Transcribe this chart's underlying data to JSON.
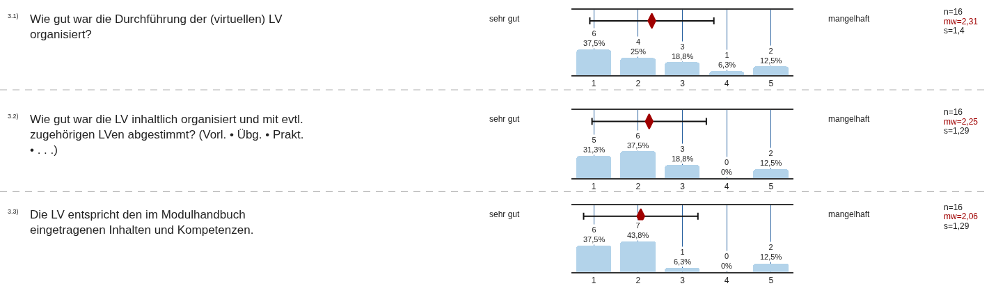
{
  "chart_data": [
    {
      "type": "bar",
      "x": [
        1,
        2,
        3,
        4,
        5
      ],
      "xlim": [
        0.5,
        5.5
      ],
      "xticks": [
        1,
        2,
        3,
        4,
        5
      ],
      "grid": "x",
      "tick_labels": "x",
      "series": [
        {
          "color": "#b3d3ea",
          "values": [
            6,
            4,
            3,
            1,
            2
          ],
          "value_labels": [
            "6\n37,5%",
            "4\n25%",
            "3\n18,8%",
            "1\n6,3%",
            "2\n12,5%"
          ]
        },
        {
          "type": "scatter",
          "color": "#a00000",
          "x": [
            2.31
          ],
          "values": [
            12.7
          ],
          "xerrors": [
            1.4
          ]
        }
      ],
      "annotations": [
        "3.1)",
        "Wie gut war die Durchführung der (virtuellen) LV\norganisiert?",
        "sehr gut",
        "mangelhaft",
        "n=16",
        "mw=2,31",
        "s=1,4"
      ]
    },
    {
      "type": "bar",
      "x": [
        1,
        2,
        3,
        4,
        5
      ],
      "xlim": [
        0.5,
        5.5
      ],
      "xticks": [
        1,
        2,
        3,
        4,
        5
      ],
      "grid": "x",
      "tick_labels": "x",
      "series": [
        {
          "color": "#b3d3ea",
          "values": [
            5,
            6,
            3,
            0,
            2
          ],
          "value_labels": [
            "5\n31,3%",
            "6\n37,5%",
            "3\n18,8%",
            "0\n0%",
            "2\n12,5%"
          ]
        },
        {
          "type": "scatter",
          "color": "#a00000",
          "x": [
            2.25
          ],
          "values": [
            12.7
          ],
          "xerrors": [
            1.29
          ]
        }
      ],
      "annotations": [
        "3.2)",
        "Wie gut war die LV inhaltlich organisiert und mit evtl.\nzugehörigen LVen abgestimmt? (Vorl. • Übg. • Prakt.\n• . . .)",
        "sehr gut",
        "mangelhaft",
        "n=16",
        "mw=2,25",
        "s=1,29"
      ]
    },
    {
      "type": "bar",
      "x": [
        1,
        2,
        3,
        4,
        5
      ],
      "xlim": [
        0.5,
        5.5
      ],
      "xticks": [
        1,
        2,
        3,
        4,
        5
      ],
      "grid": "x",
      "tick_labels": "x",
      "series": [
        {
          "color": "#b3d3ea",
          "values": [
            6,
            7,
            1,
            0,
            2
          ],
          "value_labels": [
            "6\n37,5%",
            "7\n43,8%",
            "1\n6,3%",
            "0\n0%",
            "2\n12,5%"
          ]
        },
        {
          "type": "scatter",
          "color": "#a00000",
          "x": [
            2.06
          ],
          "values": [
            12.7
          ],
          "xerrors": [
            1.29
          ]
        }
      ],
      "annotations": [
        "3.3)",
        "Die LV entspricht den im Modulhandbuch\neingetragenen Inhalten und Kompetenzen.",
        "sehr gut",
        "mangelhaft",
        "n=16",
        "mw=2,06",
        "s=1,29"
      ]
    }
  ]
}
